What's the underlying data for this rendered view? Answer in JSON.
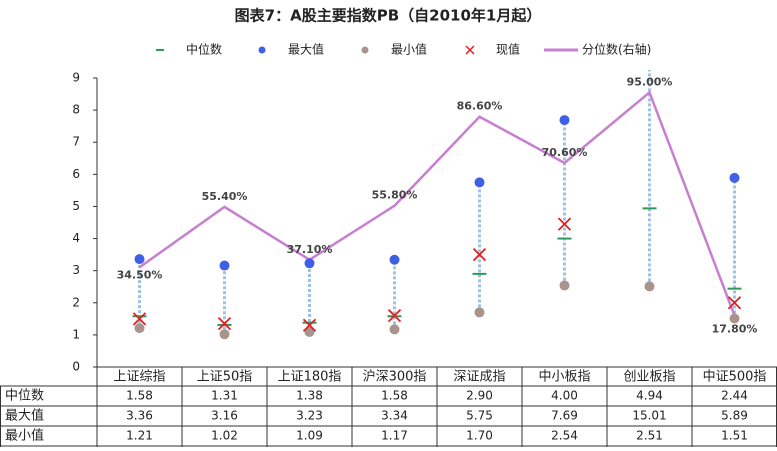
{
  "chart_data": {
    "type": "range-dot",
    "title": "图表7：A股主要指数PB（自2010年1月起）",
    "categories": [
      "上证综指",
      "上证50指",
      "上证180指",
      "沪深300指",
      "深证成指",
      "中小板指",
      "创业板指",
      "中证500指"
    ],
    "series": [
      {
        "name": "中位数",
        "color": "#2e9a5a",
        "marker": "dash",
        "values": [
          1.58,
          1.31,
          1.38,
          1.58,
          2.9,
          4.0,
          4.94,
          2.44
        ],
        "value_labels": [
          "1.58",
          "1.31",
          "1.38",
          "1.58",
          "2.90",
          "4.00",
          "4.94",
          "2.44"
        ]
      },
      {
        "name": "最大值",
        "color": "#3f5fe6",
        "marker": "dot",
        "values": [
          3.36,
          3.16,
          3.23,
          3.34,
          5.75,
          7.69,
          15.01,
          5.89
        ],
        "value_labels": [
          "3.36",
          "3.16",
          "3.23",
          "3.34",
          "5.75",
          "7.69",
          "15.01",
          "5.89"
        ]
      },
      {
        "name": "最小值",
        "color": "#a8948c",
        "marker": "dot",
        "values": [
          1.21,
          1.02,
          1.09,
          1.17,
          1.7,
          2.54,
          2.51,
          1.51
        ],
        "value_labels": [
          "1.21",
          "1.02",
          "1.09",
          "1.17",
          "1.70",
          "2.54",
          "2.51",
          "1.51"
        ]
      },
      {
        "name": "现值",
        "color": "#e02020",
        "marker": "cross",
        "values": [
          1.5,
          1.35,
          1.3,
          1.6,
          3.5,
          4.45,
          null,
          2.0
        ]
      },
      {
        "name": "分位数(右轴)",
        "color": "#c77fd0",
        "marker": "line",
        "axis": "y2",
        "values": [
          34.5,
          55.4,
          37.1,
          55.8,
          86.6,
          70.6,
          95.0,
          17.8
        ],
        "value_labels": [
          "34.50%",
          "55.40%",
          "37.10%",
          "55.80%",
          "86.60%",
          "70.60%",
          "95.00%",
          "17.80%"
        ]
      }
    ],
    "ylim": [
      0,
      9
    ],
    "yticks": [
      0,
      1,
      2,
      3,
      4,
      5,
      6,
      7,
      8,
      9
    ],
    "y2lim": [
      0,
      100
    ]
  }
}
